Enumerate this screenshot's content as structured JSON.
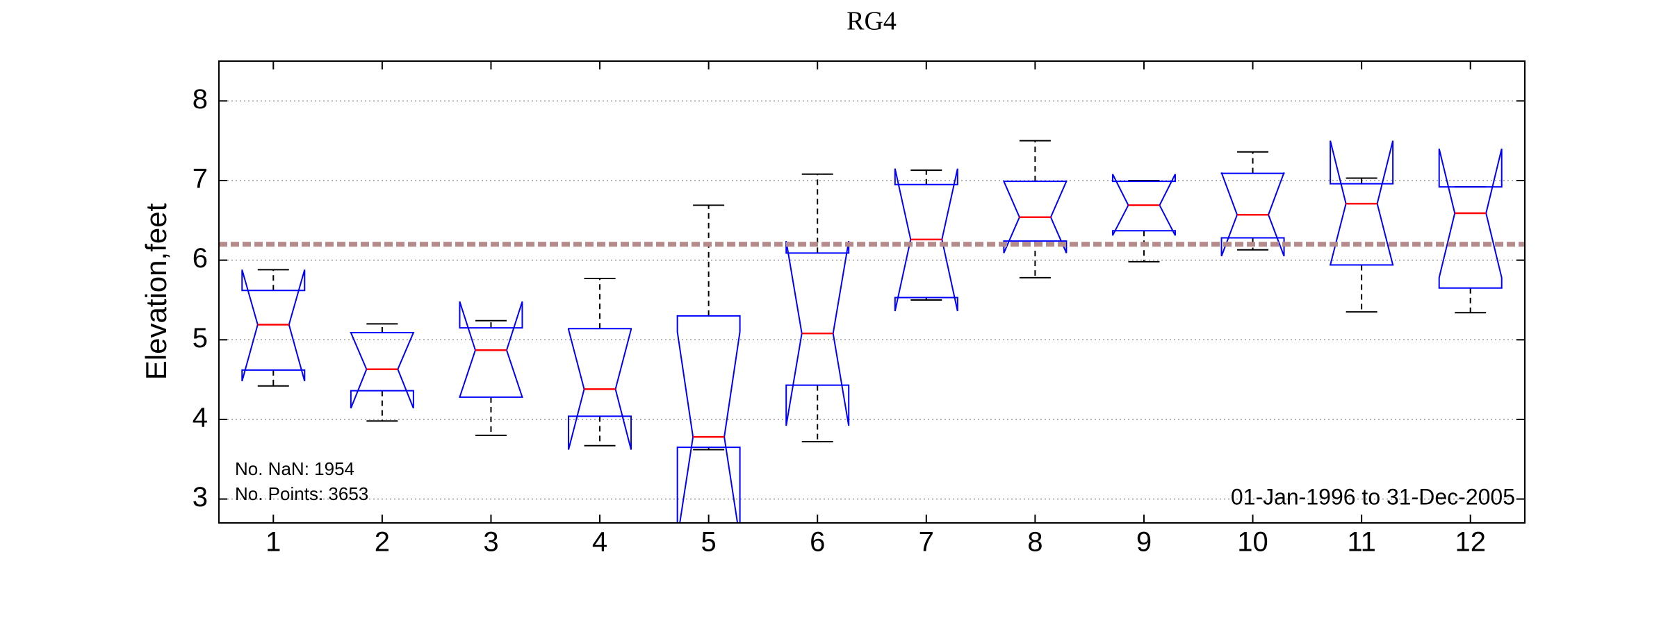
{
  "chart_data": {
    "type": "box",
    "title": "RG4",
    "y_label": "Elevation,feet",
    "categories": [
      "1",
      "2",
      "3",
      "4",
      "5",
      "6",
      "7",
      "8",
      "9",
      "10",
      "11",
      "12"
    ],
    "boxes": {
      "whisker_low": [
        4.42,
        3.98,
        3.8,
        3.67,
        3.62,
        3.72,
        5.5,
        5.78,
        5.98,
        6.13,
        5.35,
        5.34
      ],
      "q1": [
        4.62,
        4.36,
        4.28,
        4.04,
        3.65,
        4.43,
        5.53,
        6.24,
        6.37,
        6.28,
        5.94,
        5.65
      ],
      "median": [
        5.19,
        4.63,
        4.87,
        4.38,
        3.78,
        5.08,
        6.26,
        6.54,
        6.69,
        6.57,
        6.71,
        6.59
      ],
      "q3": [
        5.62,
        5.09,
        5.15,
        5.14,
        5.3,
        6.09,
        6.95,
        6.99,
        6.99,
        7.09,
        6.96,
        6.92
      ],
      "whisker_high": [
        5.88,
        5.2,
        5.24,
        5.77,
        6.69,
        7.08,
        7.13,
        7.5,
        7.0,
        7.36,
        7.03,
        6.92
      ],
      "notch_low": [
        4.48,
        4.14,
        4.28,
        3.62,
        2.5,
        3.92,
        5.36,
        6.09,
        6.31,
        6.05,
        5.94,
        5.78
      ],
      "notch_high": [
        5.88,
        5.09,
        5.48,
        5.13,
        5.1,
        6.24,
        7.15,
        6.99,
        7.08,
        7.1,
        7.5,
        7.4
      ]
    },
    "box_color": "#0000ff",
    "median_color": "#ff0000",
    "whisker_color": "#000000",
    "reference_line": 6.2,
    "reference_color": "#b58a8a",
    "ylim": [
      2.7,
      8.5
    ],
    "yticks": [
      3,
      4,
      5,
      6,
      7,
      8
    ],
    "grid": true,
    "nan_note": "No. NaN: 1954",
    "points_note": "No. Points: 3653",
    "date_range": "01-Jan-1996 to 31-Dec-2005"
  }
}
